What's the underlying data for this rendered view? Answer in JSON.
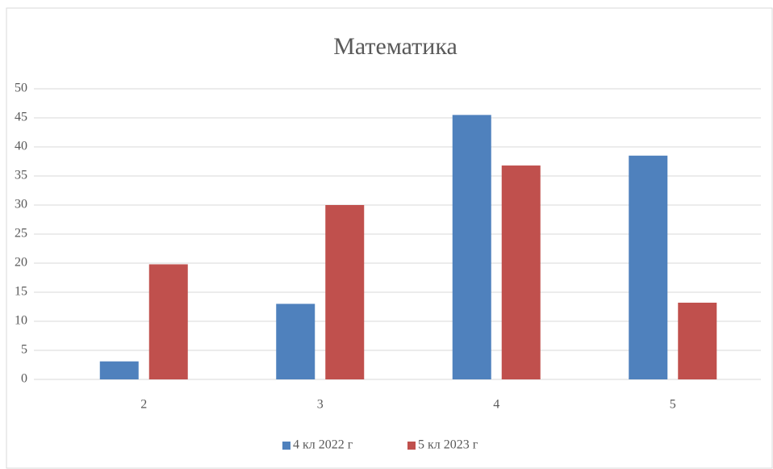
{
  "chart_data": {
    "type": "bar",
    "title": "Математика",
    "categories": [
      "2",
      "3",
      "4",
      "5"
    ],
    "series": [
      {
        "name": "4 кл 2022 г",
        "color": "#4f81bd",
        "values": [
          3.1,
          13,
          45.5,
          38.5
        ]
      },
      {
        "name": "5 кл 2023 г",
        "color": "#c0504d",
        "values": [
          19.8,
          30,
          36.8,
          13.2
        ]
      }
    ],
    "ylim": [
      0,
      50
    ],
    "yticks": [
      0,
      5,
      10,
      15,
      20,
      25,
      30,
      35,
      40,
      45,
      50
    ],
    "grid": true,
    "legend": "bottom"
  }
}
